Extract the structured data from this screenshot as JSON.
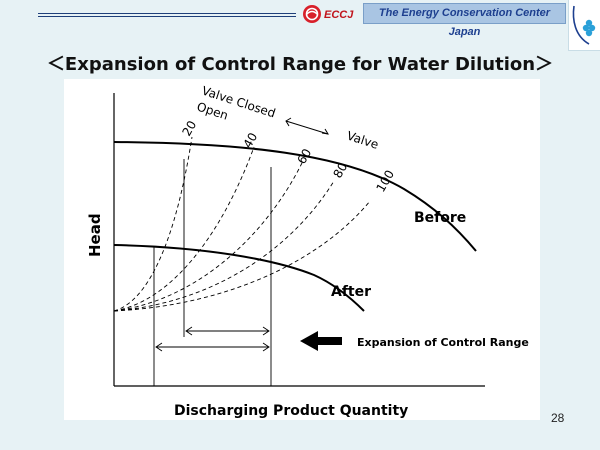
{
  "header": {
    "logo_text": "ECCJ",
    "org_name": "The Energy Conservation Center Japan"
  },
  "slide": {
    "title": "＜Expansion of Control Range for Water Dilution＞",
    "page_number": "28"
  },
  "diagram": {
    "y_axis_label": "Head",
    "x_axis_label": "Discharging Product Quantity",
    "valve_closed_label": "Valve Closed",
    "open_label": "Open",
    "valve_label": "Valve",
    "valve_openings": [
      "20",
      "40",
      "60",
      "80",
      "100"
    ],
    "curve_before_label": "Before",
    "curve_after_label": "After",
    "expansion_label": "Expansion of Control Range",
    "colors": {
      "lines": "#000000",
      "background": "#ffffff"
    }
  }
}
